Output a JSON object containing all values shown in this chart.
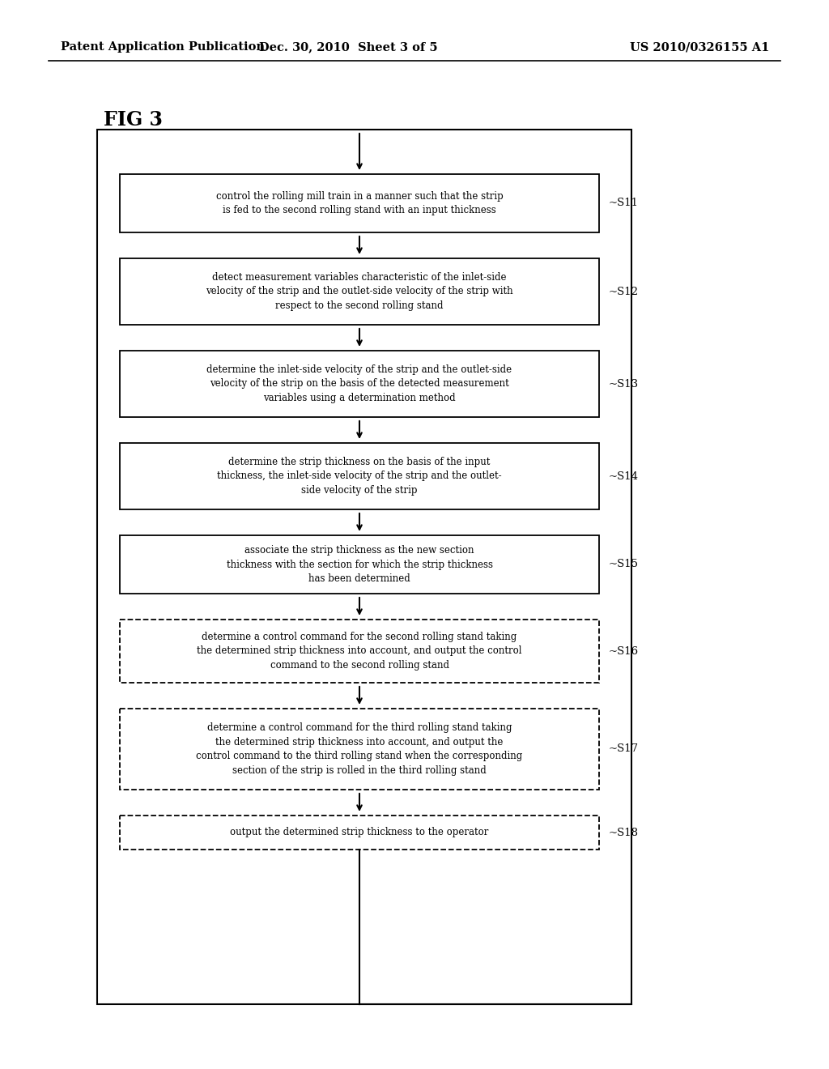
{
  "header_left": "Patent Application Publication",
  "header_mid": "Dec. 30, 2010  Sheet 3 of 5",
  "header_right": "US 2010/0326155 A1",
  "fig_label": "FIG 3",
  "steps": [
    {
      "id": "S11",
      "text": "control the rolling mill train in a manner such that the strip\nis fed to the second rolling stand with an input thickness",
      "label": "S11",
      "dashed": false
    },
    {
      "id": "S12",
      "text": "detect measurement variables characteristic of the inlet-side\nvelocity of the strip and the outlet-side velocity of the strip with\nrespect to the second rolling stand",
      "label": "S12",
      "dashed": false
    },
    {
      "id": "S13",
      "text": "determine the inlet-side velocity of the strip and the outlet-side\nvelocity of the strip on the basis of the detected measurement\nvariables using a determination method",
      "label": "S13",
      "dashed": false
    },
    {
      "id": "S14",
      "text": "determine the strip thickness on the basis of the input\nthickness, the inlet-side velocity of the strip and the outlet-\nside velocity of the strip",
      "label": "S14",
      "dashed": false
    },
    {
      "id": "S15",
      "text": "associate the strip thickness as the new section\nthickness with the section for which the strip thickness\nhas been determined",
      "label": "S15",
      "dashed": false
    },
    {
      "id": "S16",
      "text": "determine a control command for the second rolling stand taking\nthe determined strip thickness into account, and output the control\ncommand to the second rolling stand",
      "label": "S16",
      "dashed": true
    },
    {
      "id": "S17",
      "text": "determine a control command for the third rolling stand taking\nthe determined strip thickness into account, and output the\ncontrol command to the third rolling stand when the corresponding\nsection of the strip is rolled in the third rolling stand",
      "label": "S17",
      "dashed": true
    },
    {
      "id": "S18",
      "text": "output the determined strip thickness to the operator",
      "label": "S18",
      "dashed": true
    }
  ],
  "bg_color": "#ffffff",
  "text_color": "#000000"
}
